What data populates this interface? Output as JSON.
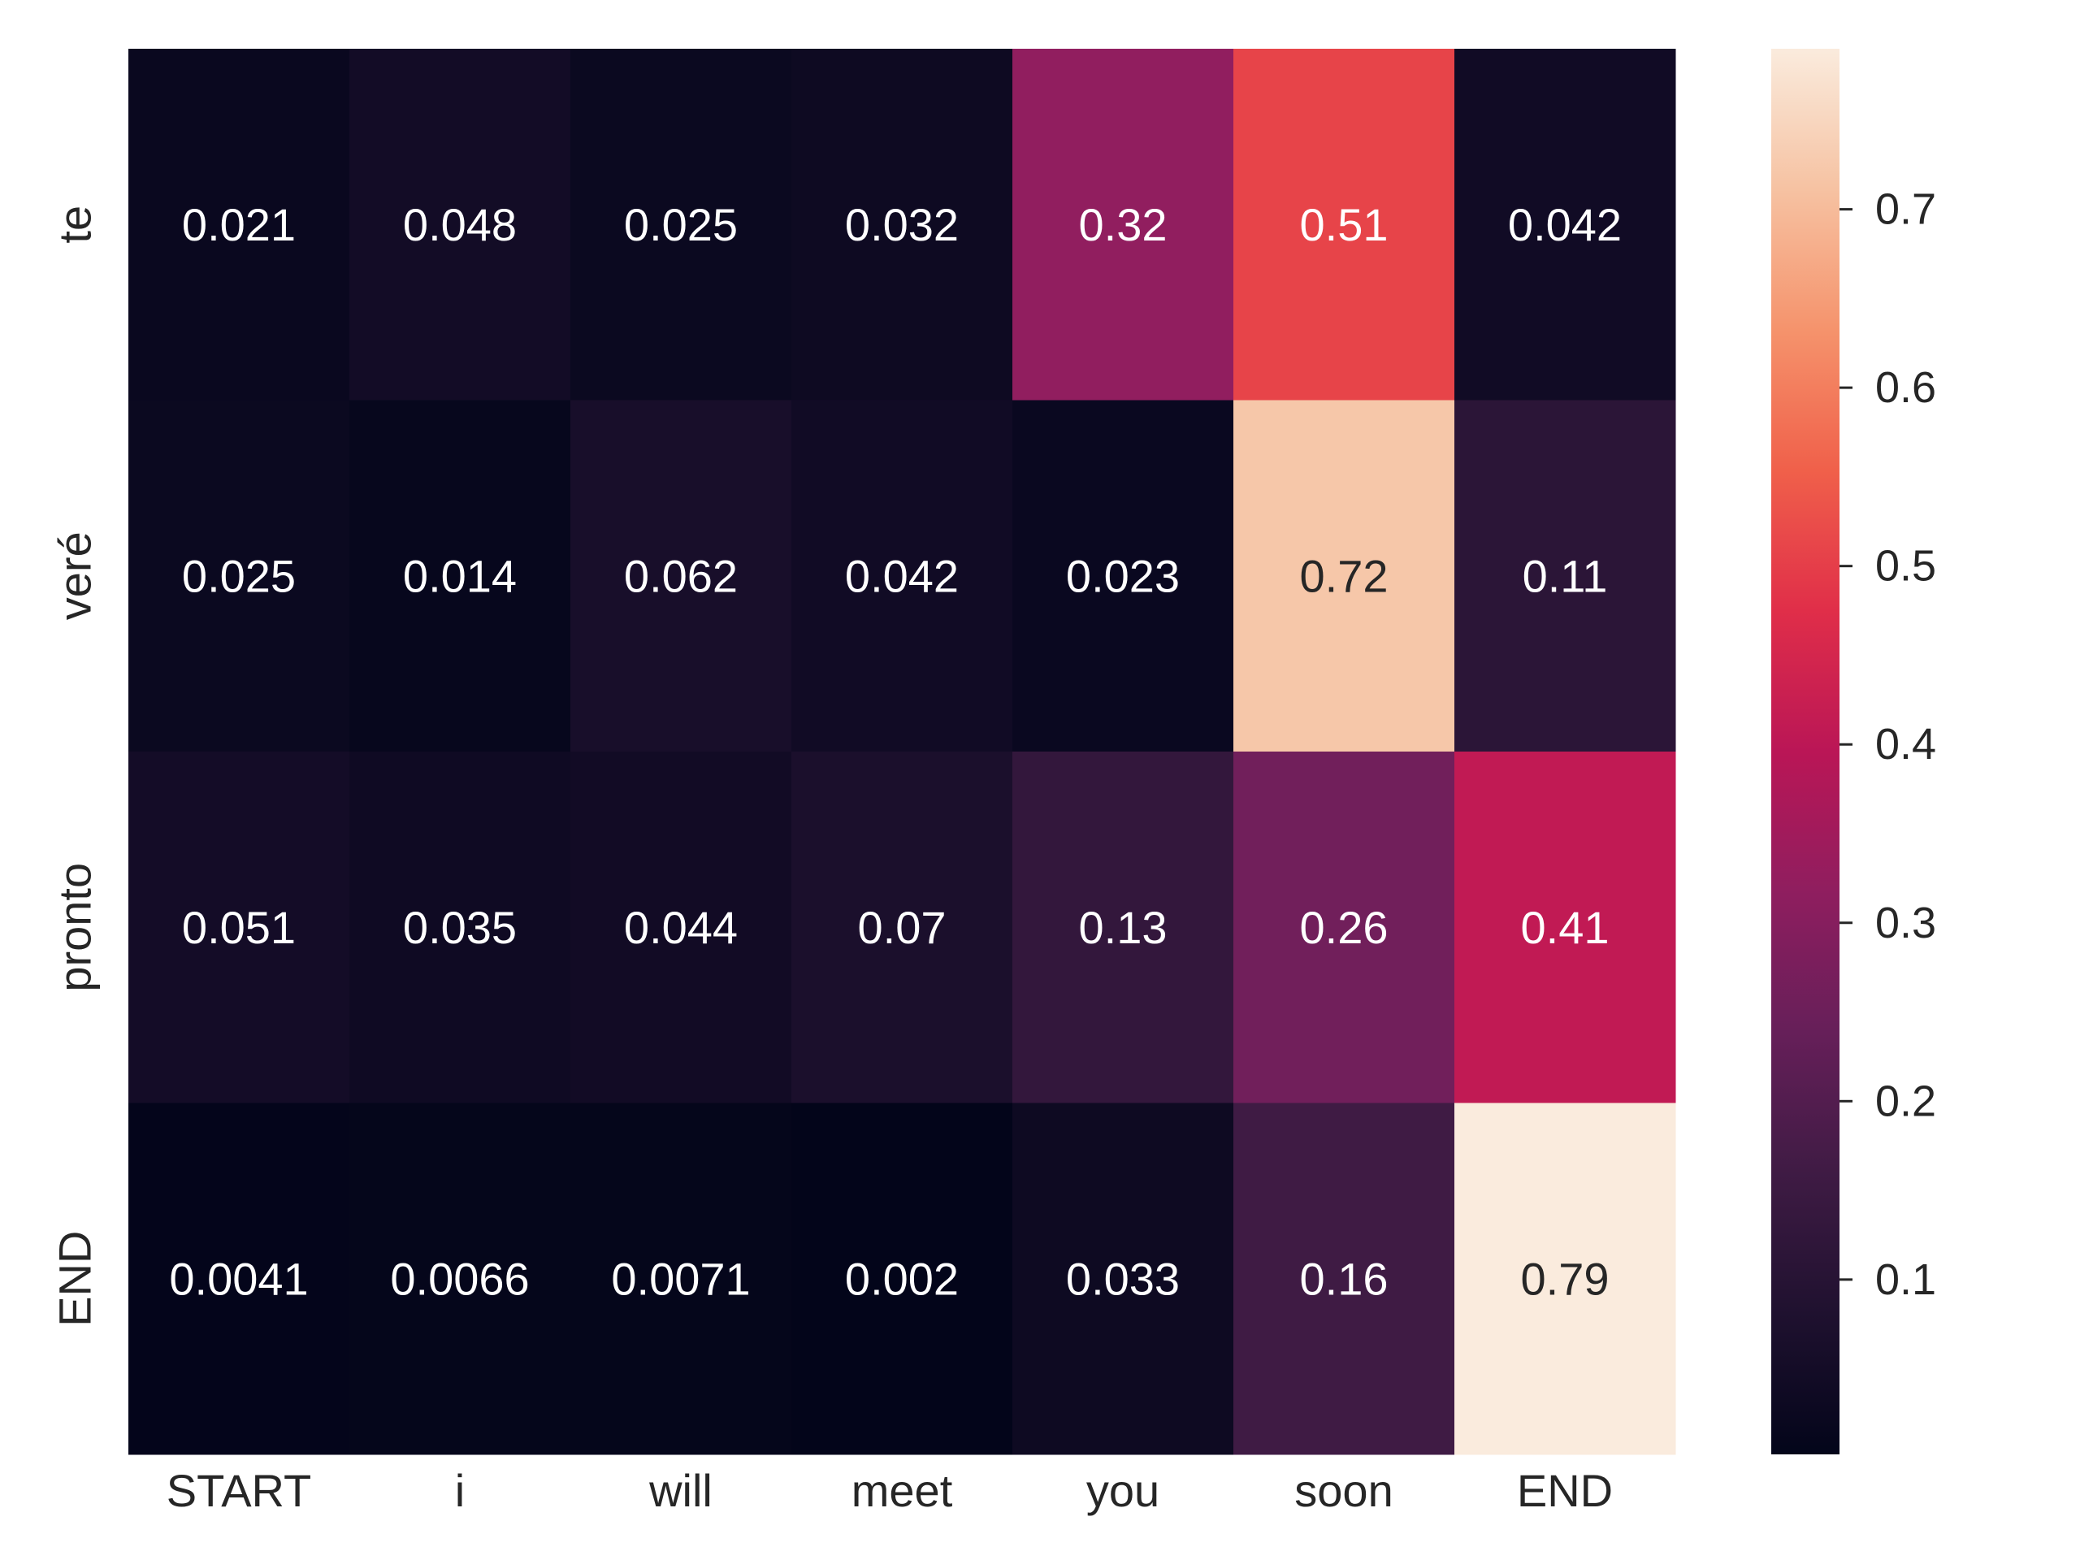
{
  "chart_data": {
    "type": "heatmap",
    "x_categories": [
      "START",
      "i",
      "will",
      "meet",
      "you",
      "soon",
      "END"
    ],
    "y_categories": [
      "te",
      "veré",
      "pronto",
      "END"
    ],
    "values": [
      [
        0.021,
        0.048,
        0.025,
        0.032,
        0.32,
        0.51,
        0.042
      ],
      [
        0.025,
        0.014,
        0.062,
        0.042,
        0.023,
        0.72,
        0.11
      ],
      [
        0.051,
        0.035,
        0.044,
        0.07,
        0.13,
        0.26,
        0.41
      ],
      [
        0.0041,
        0.0066,
        0.0071,
        0.002,
        0.033,
        0.16,
        0.79
      ]
    ],
    "value_labels": [
      [
        "0.021",
        "0.048",
        "0.025",
        "0.032",
        "0.32",
        "0.51",
        "0.042"
      ],
      [
        "0.025",
        "0.014",
        "0.062",
        "0.042",
        "0.023",
        "0.72",
        "0.11"
      ],
      [
        "0.051",
        "0.035",
        "0.044",
        "0.07",
        "0.13",
        "0.26",
        "0.41"
      ],
      [
        "0.0041",
        "0.0066",
        "0.0071",
        "0.002",
        "0.033",
        "0.16",
        "0.79"
      ]
    ],
    "colormap": "rocket",
    "vmin": 0.002,
    "vmax": 0.79,
    "colorbar": {
      "ticks": [
        0.1,
        0.2,
        0.3,
        0.4,
        0.5,
        0.6,
        0.7
      ],
      "tick_labels": [
        "0.1",
        "0.2",
        "0.3",
        "0.4",
        "0.5",
        "0.6",
        "0.7"
      ]
    },
    "title": "",
    "xlabel": "",
    "ylabel": "",
    "grid": false,
    "legend_position": "right"
  }
}
